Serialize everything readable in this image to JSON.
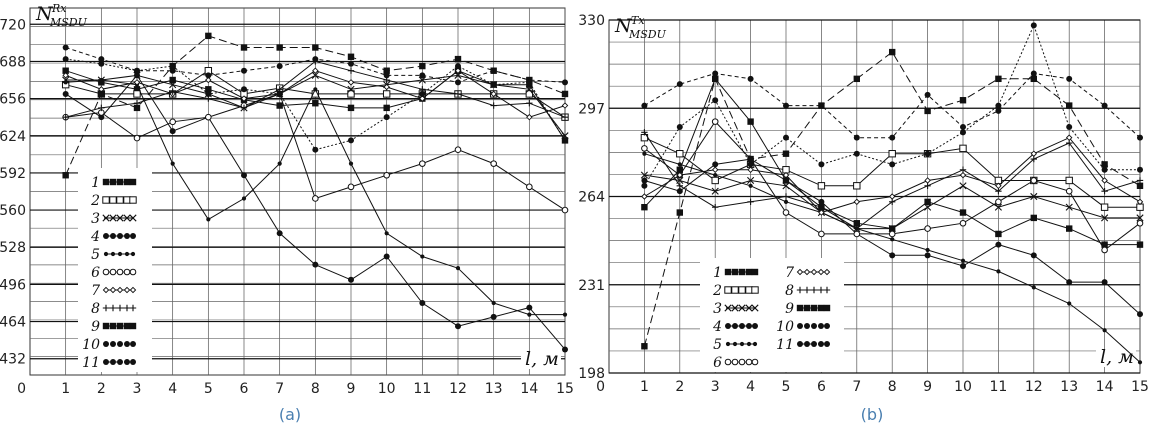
{
  "chart_data": [
    {
      "type": "line",
      "caption": "(a)",
      "ylabel_main": "N",
      "ylabel_sub": "MSDU",
      "ylabel_sup": "Rx",
      "xlabel": "l, м",
      "origin_label": "0",
      "x": [
        1,
        2,
        3,
        4,
        5,
        6,
        7,
        8,
        9,
        10,
        11,
        12,
        13,
        14,
        15
      ],
      "ylim": [
        418,
        734
      ],
      "yticks": [
        432,
        464,
        496,
        528,
        560,
        592,
        624,
        656,
        688,
        720
      ],
      "series": [
        {
          "name": "1",
          "marker": "square-filled",
          "dash": "",
          "values": [
            680,
            670,
            664,
            672,
            664,
            655,
            650,
            652,
            648,
            648,
            656,
            680,
            668,
            668,
            620
          ]
        },
        {
          "name": "2",
          "marker": "square-open",
          "dash": "",
          "values": [
            668,
            660,
            660,
            660,
            680,
            660,
            665,
            660,
            660,
            660,
            660,
            660,
            660,
            660,
            640
          ]
        },
        {
          "name": "3",
          "marker": "cross",
          "dash": "",
          "values": [
            672,
            672,
            676,
            668,
            660,
            648,
            660,
            676,
            664,
            668,
            672,
            676,
            668,
            664,
            624
          ]
        },
        {
          "name": "4",
          "marker": "dot",
          "dash": "",
          "values": [
            660,
            640,
            676,
            628,
            640,
            590,
            540,
            513,
            500,
            520,
            480,
            460,
            468,
            476,
            440
          ]
        },
        {
          "name": "5",
          "marker": "dot-small",
          "dash": "",
          "values": [
            670,
            672,
            668,
            600,
            552,
            570,
            600,
            664,
            600,
            540,
            520,
            510,
            480,
            470,
            470
          ]
        },
        {
          "name": "6",
          "marker": "circle-open",
          "dash": "",
          "values": [
            640,
            644,
            622,
            636,
            640,
            650,
            660,
            570,
            580,
            590,
            600,
            612,
            600,
            580,
            560
          ]
        },
        {
          "name": "7",
          "marker": "diamond-small",
          "dash": "",
          "values": [
            676,
            664,
            670,
            660,
            672,
            656,
            660,
            680,
            670,
            666,
            656,
            680,
            660,
            640,
            650
          ]
        },
        {
          "name": "8",
          "marker": "plus",
          "dash": "",
          "values": [
            640,
            648,
            652,
            662,
            656,
            648,
            664,
            688,
            680,
            672,
            664,
            660,
            650,
            652,
            640
          ]
        },
        {
          "name": "9",
          "marker": "square-filled",
          "dash": "8,4",
          "values": [
            590,
            660,
            648,
            684,
            710,
            700,
            700,
            700,
            692,
            680,
            684,
            690,
            680,
            672,
            660
          ]
        },
        {
          "name": "10",
          "marker": "dot",
          "dash": "4,3",
          "values": [
            700,
            690,
            680,
            680,
            676,
            680,
            684,
            690,
            686,
            676,
            676,
            670,
            680,
            672,
            670
          ]
        },
        {
          "name": "11",
          "marker": "dot",
          "dash": "2,2",
          "values": [
            690,
            686,
            680,
            684,
            660,
            664,
            660,
            612,
            620,
            640,
            660,
            684,
            668,
            670,
            620
          ]
        }
      ]
    },
    {
      "type": "line",
      "caption": "(b)",
      "ylabel_main": "N",
      "ylabel_sub": "MSDU",
      "ylabel_sup": "Tx",
      "xlabel": "l, м",
      "origin_label": "0",
      "x": [
        1,
        2,
        3,
        4,
        5,
        6,
        7,
        8,
        9,
        10,
        11,
        12,
        13,
        14,
        15
      ],
      "ylim": [
        198,
        330
      ],
      "yticks": [
        198,
        231,
        264,
        297,
        330
      ],
      "series": [
        {
          "name": "1",
          "marker": "square-filled",
          "dash": "",
          "values": [
            260,
            274,
            308,
            292,
            270,
            260,
            254,
            252,
            262,
            258,
            250,
            256,
            252,
            246,
            246
          ]
        },
        {
          "name": "2",
          "marker": "square-open",
          "dash": "",
          "values": [
            286,
            280,
            270,
            276,
            274,
            268,
            268,
            280,
            280,
            282,
            270,
            270,
            270,
            260,
            260
          ]
        },
        {
          "name": "3",
          "marker": "cross",
          "dash": "",
          "values": [
            272,
            270,
            266,
            270,
            268,
            258,
            252,
            252,
            260,
            268,
            260,
            264,
            260,
            256,
            256
          ]
        },
        {
          "name": "4",
          "marker": "dot",
          "dash": "",
          "values": [
            270,
            266,
            276,
            278,
            270,
            262,
            250,
            242,
            242,
            238,
            246,
            242,
            232,
            232,
            220
          ]
        },
        {
          "name": "5",
          "marker": "dot-small",
          "dash": "",
          "values": [
            280,
            276,
            272,
            268,
            262,
            258,
            252,
            248,
            244,
            240,
            236,
            230,
            224,
            214,
            202
          ]
        },
        {
          "name": "6",
          "marker": "circle-open",
          "dash": "",
          "values": [
            282,
            272,
            292,
            278,
            258,
            250,
            250,
            250,
            252,
            254,
            262,
            270,
            266,
            244,
            254
          ]
        },
        {
          "name": "7",
          "marker": "diamond-small",
          "dash": "",
          "values": [
            264,
            272,
            274,
            274,
            272,
            258,
            262,
            264,
            270,
            272,
            268,
            280,
            286,
            270,
            262
          ]
        },
        {
          "name": "8",
          "marker": "plus",
          "dash": "",
          "values": [
            288,
            268,
            260,
            262,
            264,
            260,
            252,
            262,
            268,
            274,
            266,
            278,
            284,
            266,
            270
          ]
        },
        {
          "name": "9",
          "marker": "square-filled",
          "dash": "8,4",
          "values": [
            208,
            258,
            308,
            278,
            280,
            298,
            308,
            318,
            296,
            300,
            308,
            308,
            298,
            276,
            268
          ]
        },
        {
          "name": "10",
          "marker": "dot",
          "dash": "4,3",
          "values": [
            298,
            306,
            310,
            308,
            298,
            298,
            286,
            286,
            302,
            290,
            296,
            310,
            308,
            298,
            286
          ]
        },
        {
          "name": "11",
          "marker": "dot",
          "dash": "2,2",
          "values": [
            268,
            290,
            300,
            276,
            286,
            276,
            280,
            276,
            280,
            288,
            298,
            328,
            290,
            274,
            274
          ]
        }
      ]
    }
  ]
}
